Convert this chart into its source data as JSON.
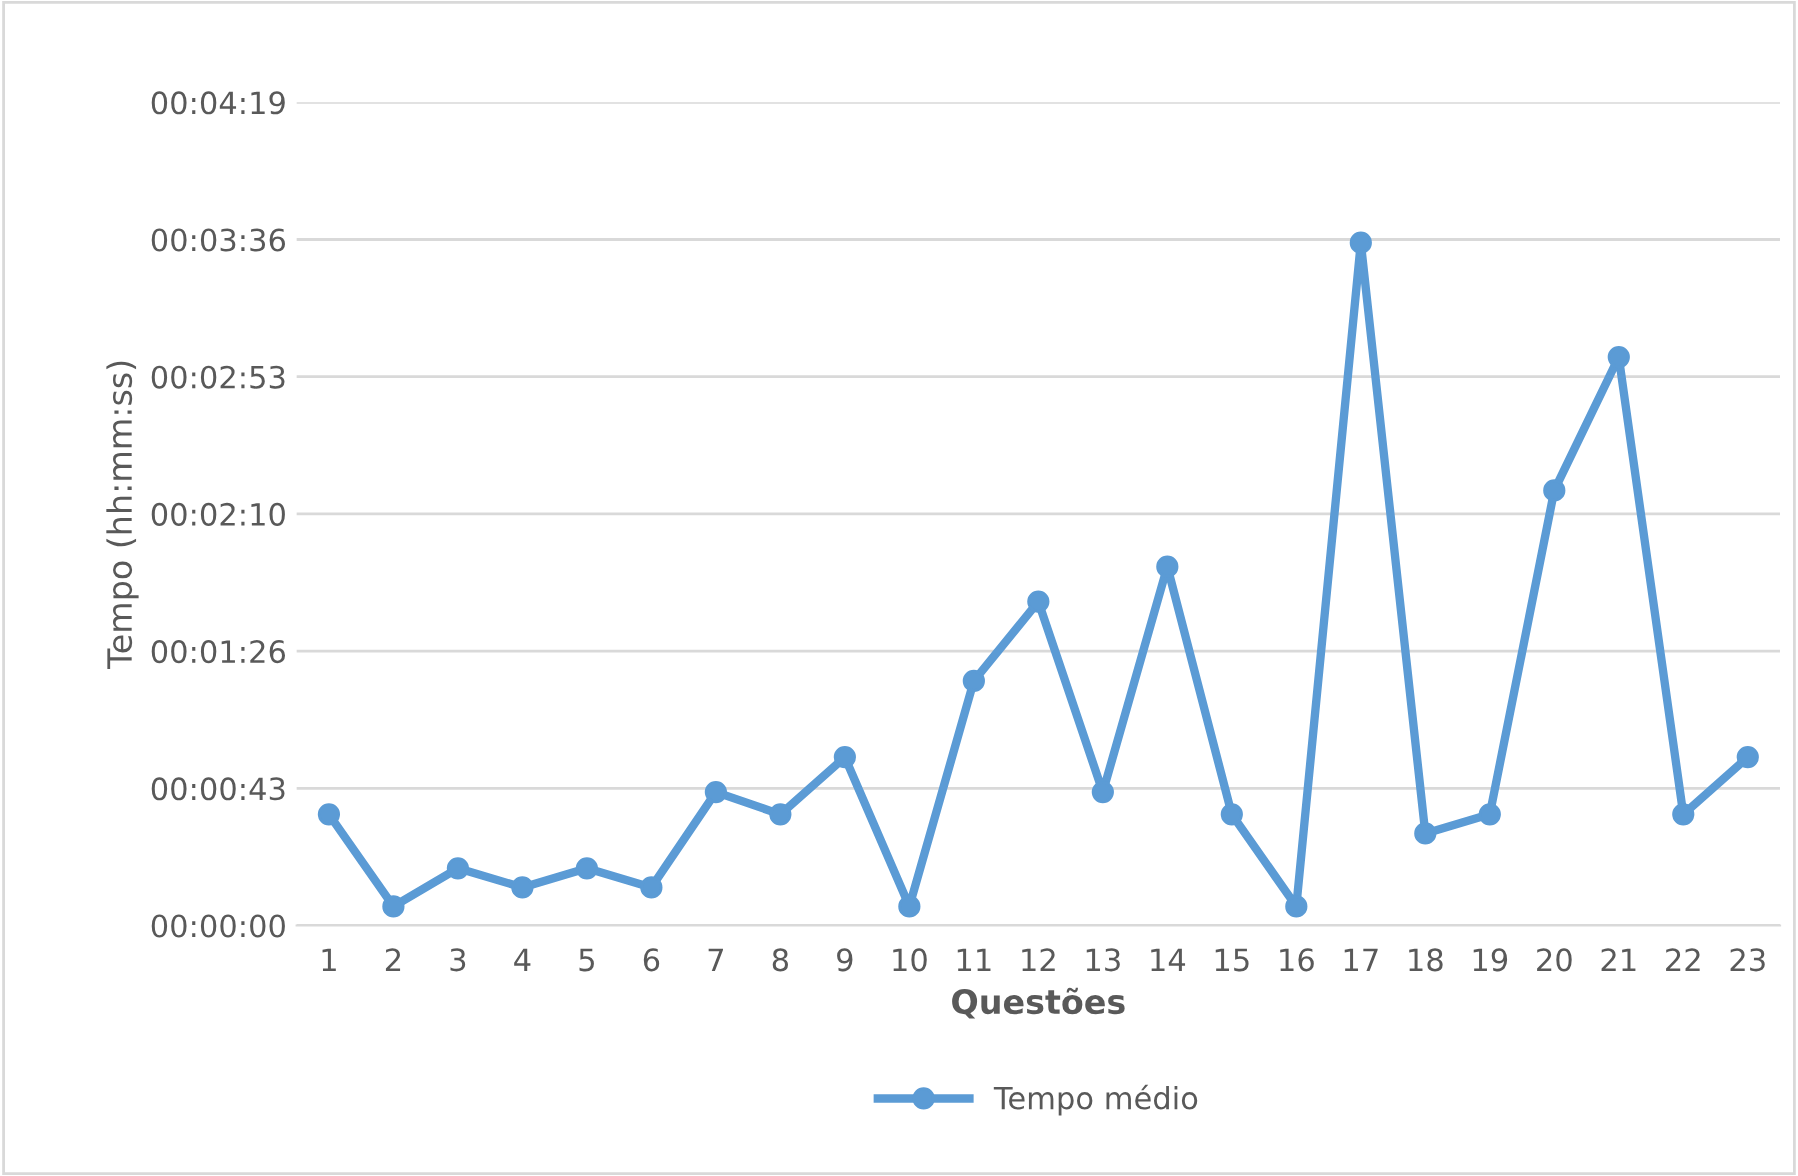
{
  "chart_data": {
    "type": "line",
    "xlabel": "Questões",
    "ylabel": "Tempo (hh:mm:ss)",
    "categories": [
      "1",
      "2",
      "3",
      "4",
      "5",
      "6",
      "7",
      "8",
      "9",
      "10",
      "11",
      "12",
      "13",
      "14",
      "15",
      "16",
      "17",
      "18",
      "19",
      "20",
      "21",
      "22",
      "23"
    ],
    "series": [
      {
        "name": "Tempo médio",
        "color": "#5b9bd5",
        "values": [
          35,
          6,
          18,
          12,
          18,
          12,
          42,
          35,
          53,
          6,
          77,
          102,
          42,
          113,
          35,
          6,
          215,
          29,
          35,
          137,
          179,
          35,
          53
        ]
      }
    ],
    "ylim": [
      0,
      259.2
    ],
    "yticks": [
      {
        "value": 0,
        "label": "00:00:00"
      },
      {
        "value": 43.2,
        "label": "00:00:43"
      },
      {
        "value": 86.4,
        "label": "00:01:26"
      },
      {
        "value": 129.6,
        "label": "00:02:10"
      },
      {
        "value": 172.8,
        "label": "00:02:53"
      },
      {
        "value": 216,
        "label": "00:03:36"
      },
      {
        "value": 259.2,
        "label": "00:04:19"
      }
    ],
    "grid": "y",
    "legend": "bottom",
    "marker": "circle",
    "line_style": "solid"
  }
}
